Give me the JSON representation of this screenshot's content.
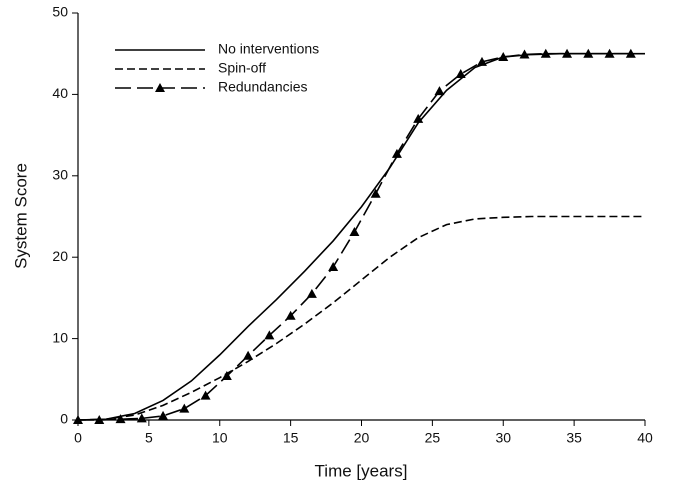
{
  "chart_data": {
    "type": "line",
    "x_label": "Time [years]",
    "y_label": "System Score",
    "xlim": [
      0,
      40
    ],
    "xticks": [
      0,
      5,
      10,
      15,
      20,
      25,
      30,
      35,
      40
    ],
    "ylim": [
      0,
      50
    ],
    "yticks": [
      0,
      10,
      20,
      30,
      40,
      50
    ],
    "legend": "upper-left",
    "series": [
      {
        "name": "No interventions",
        "color": "#000000",
        "dash": "solid",
        "x": [
          0,
          2,
          4,
          6,
          8,
          10,
          12,
          14,
          16,
          18,
          20,
          22,
          24,
          26,
          28,
          30,
          32,
          34,
          36,
          38,
          40
        ],
        "values": [
          0,
          0.1,
          0.8,
          2.4,
          4.8,
          8,
          11.5,
          14.8,
          18.3,
          22,
          26.2,
          31,
          36.5,
          40.5,
          43.3,
          44.6,
          44.9,
          45,
          45,
          45,
          45
        ]
      },
      {
        "name": "Spin-off",
        "color": "#000000",
        "dash": "short",
        "x": [
          0,
          2,
          4,
          6,
          8,
          10,
          12,
          14,
          16,
          18,
          20,
          22,
          24,
          26,
          28,
          30,
          32,
          34,
          36,
          38,
          40
        ],
        "values": [
          0,
          0.1,
          0.6,
          1.8,
          3.4,
          5.2,
          7.2,
          9.4,
          11.8,
          14.4,
          17.2,
          20,
          22.4,
          24,
          24.7,
          24.9,
          25,
          25,
          25,
          25,
          25
        ]
      },
      {
        "name": "Redundancies",
        "color": "#000000",
        "dash": "long",
        "marker": "triangle",
        "x": [
          0,
          1.5,
          3,
          4.5,
          6,
          7.5,
          9,
          10.5,
          12,
          13.5,
          15,
          16.5,
          18,
          19.5,
          21,
          22.5,
          24,
          25.5,
          27,
          28.5,
          30,
          31.5,
          33,
          34.5,
          36,
          37.5,
          39
        ],
        "values": [
          0,
          0,
          0.1,
          0.2,
          0.5,
          1.4,
          3,
          5.4,
          7.9,
          10.4,
          12.8,
          15.5,
          18.8,
          23.1,
          27.8,
          32.7,
          37,
          40.4,
          42.5,
          44,
          44.6,
          44.9,
          45,
          45,
          45,
          45,
          45
        ]
      }
    ]
  }
}
